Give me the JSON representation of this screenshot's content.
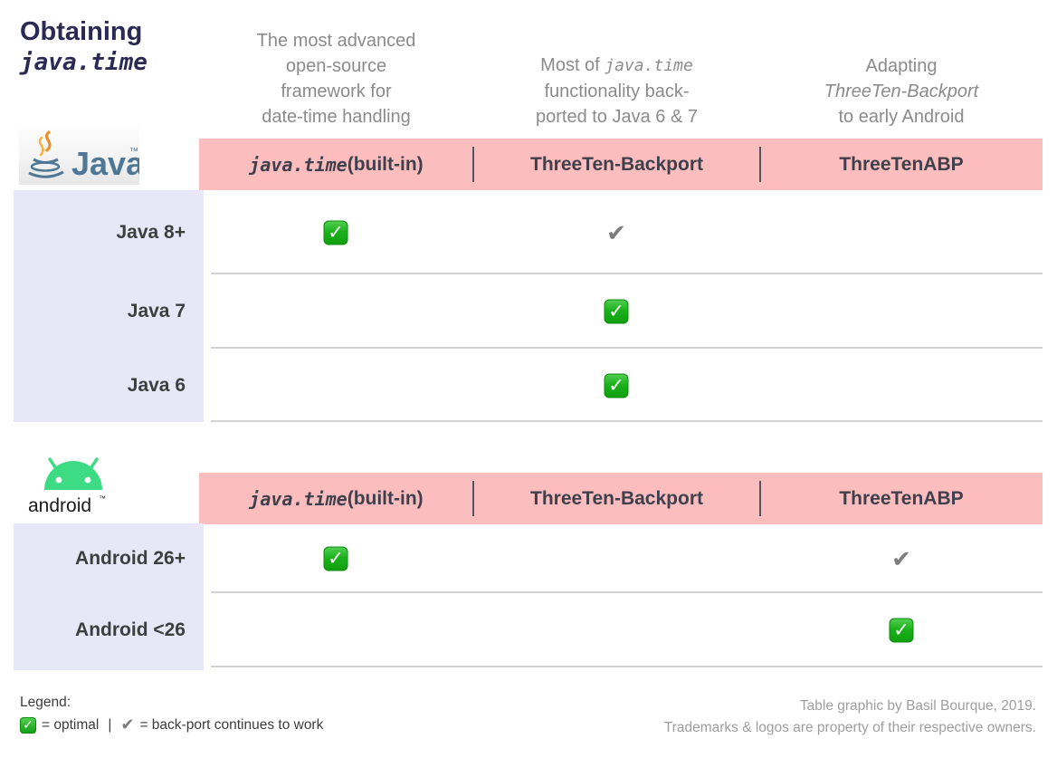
{
  "title": {
    "l1": "Obtaining",
    "l2": "java.time"
  },
  "column_headers": {
    "col1": {
      "l1": "The most advanced",
      "l2": "open-source",
      "l3": "framework for",
      "l4": "date-time handling"
    },
    "col2": {
      "l1_pre": "Most of ",
      "l1_it": "java.time",
      "l2": "functionality back-",
      "l3": "ported to Java 6 & 7"
    },
    "col3": {
      "l1": "Adapting",
      "l2_it": "ThreeTen-Backport",
      "l3": "to early Android"
    }
  },
  "band": {
    "col1_italic": "java.time",
    "col1_rest": " (built-in)",
    "col2": "ThreeTen-Backport",
    "col3": "ThreeTenABP"
  },
  "logos": {
    "java": {
      "text": "Java",
      "tm": "™"
    },
    "android": {
      "text": "android",
      "tm": "™"
    }
  },
  "sections": {
    "java": {
      "rows": [
        {
          "label": "Java 8+",
          "cells": [
            "optimal",
            "works",
            null
          ]
        },
        {
          "label": "Java 7",
          "cells": [
            null,
            "optimal",
            null
          ]
        },
        {
          "label": "Java 6",
          "cells": [
            null,
            "optimal",
            null
          ]
        }
      ]
    },
    "android": {
      "rows": [
        {
          "label": "Android 26+",
          "cells": [
            "optimal",
            null,
            "works"
          ]
        },
        {
          "label": "Android <26",
          "cells": [
            null,
            null,
            "optimal"
          ]
        }
      ]
    }
  },
  "marks": {
    "optimal_glyph": "✓",
    "works_glyph": "✔"
  },
  "legend": {
    "label": "Legend:",
    "optimal_text": "= optimal",
    "pipe": "|",
    "works_text": "= back-port continues to work"
  },
  "footer": {
    "l1": "Table graphic by Basil Bourque, 2019.",
    "l2": "Trademarks & logos are property of their respective owners."
  },
  "colors": {
    "band_pink": "#FBBDBD",
    "side_lavender": "#E7E7F8",
    "title_navy": "#2B2A55",
    "header_gray": "#8B8B8B",
    "optimal_green": "#1CB21C",
    "works_gray": "#7D7D7D",
    "android_green": "#3DDC84",
    "java_blue": "#4E7896",
    "flame_orange": "#E8912D"
  }
}
